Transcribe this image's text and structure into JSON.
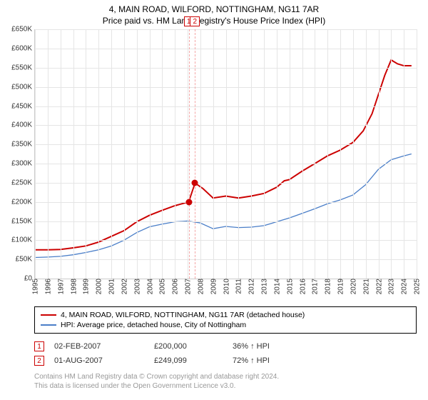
{
  "title_line1": "4, MAIN ROAD, WILFORD, NOTTINGHAM, NG11 7AR",
  "title_line2": "Price paid vs. HM Land Registry's House Price Index (HPI)",
  "y_axis": {
    "min": 0,
    "max": 650000,
    "step": 50000,
    "labels": [
      "£0",
      "£50K",
      "£100K",
      "£150K",
      "£200K",
      "£250K",
      "£300K",
      "£350K",
      "£400K",
      "£450K",
      "£500K",
      "£550K",
      "£600K",
      "£650K"
    ]
  },
  "x_axis": {
    "min": 1995,
    "max": 2025,
    "ticks": [
      1995,
      1996,
      1997,
      1998,
      1999,
      2000,
      2001,
      2002,
      2003,
      2004,
      2005,
      2006,
      2007,
      2008,
      2009,
      2010,
      2011,
      2012,
      2013,
      2014,
      2015,
      2016,
      2017,
      2018,
      2019,
      2020,
      2021,
      2022,
      2023,
      2024,
      2025
    ]
  },
  "series": {
    "red": {
      "color": "#cc0000",
      "width": 2,
      "legend": "4, MAIN ROAD, WILFORD, NOTTINGHAM, NG11 7AR (detached house)",
      "points": [
        [
          1995.0,
          75000
        ],
        [
          1996.0,
          75000
        ],
        [
          1997.0,
          76000
        ],
        [
          1998.0,
          80000
        ],
        [
          1999.0,
          85000
        ],
        [
          2000.0,
          95000
        ],
        [
          2001.0,
          110000
        ],
        [
          2002.0,
          125000
        ],
        [
          2003.0,
          148000
        ],
        [
          2004.0,
          165000
        ],
        [
          2005.0,
          178000
        ],
        [
          2006.0,
          190000
        ],
        [
          2007.09,
          200000
        ],
        [
          2007.58,
          249099
        ],
        [
          2008.2,
          235000
        ],
        [
          2009.0,
          210000
        ],
        [
          2010.0,
          215000
        ],
        [
          2011.0,
          210000
        ],
        [
          2012.0,
          215000
        ],
        [
          2013.0,
          222000
        ],
        [
          2014.0,
          238000
        ],
        [
          2014.6,
          255000
        ],
        [
          2015.0,
          258000
        ],
        [
          2016.0,
          280000
        ],
        [
          2017.0,
          300000
        ],
        [
          2018.0,
          320000
        ],
        [
          2019.0,
          335000
        ],
        [
          2020.0,
          355000
        ],
        [
          2020.8,
          385000
        ],
        [
          2021.5,
          430000
        ],
        [
          2022.0,
          480000
        ],
        [
          2022.5,
          530000
        ],
        [
          2023.0,
          570000
        ],
        [
          2023.5,
          560000
        ],
        [
          2024.0,
          555000
        ],
        [
          2024.6,
          555000
        ]
      ]
    },
    "blue": {
      "color": "#4a7ec8",
      "width": 1.3,
      "legend": "HPI: Average price, detached house, City of Nottingham",
      "points": [
        [
          1995.0,
          55000
        ],
        [
          1996.0,
          56000
        ],
        [
          1997.0,
          58000
        ],
        [
          1998.0,
          62000
        ],
        [
          1999.0,
          68000
        ],
        [
          2000.0,
          75000
        ],
        [
          2001.0,
          85000
        ],
        [
          2002.0,
          100000
        ],
        [
          2003.0,
          120000
        ],
        [
          2004.0,
          135000
        ],
        [
          2005.0,
          142000
        ],
        [
          2006.0,
          148000
        ],
        [
          2007.0,
          150000
        ],
        [
          2008.0,
          145000
        ],
        [
          2009.0,
          130000
        ],
        [
          2010.0,
          136000
        ],
        [
          2011.0,
          133000
        ],
        [
          2012.0,
          134000
        ],
        [
          2013.0,
          138000
        ],
        [
          2014.0,
          148000
        ],
        [
          2015.0,
          158000
        ],
        [
          2016.0,
          170000
        ],
        [
          2017.0,
          182000
        ],
        [
          2018.0,
          195000
        ],
        [
          2019.0,
          205000
        ],
        [
          2020.0,
          218000
        ],
        [
          2021.0,
          245000
        ],
        [
          2022.0,
          285000
        ],
        [
          2023.0,
          310000
        ],
        [
          2024.0,
          320000
        ],
        [
          2024.6,
          325000
        ]
      ]
    }
  },
  "sale_markers": [
    {
      "n": "1",
      "x": 2007.09,
      "y": 200000
    },
    {
      "n": "2",
      "x": 2007.58,
      "y": 249099
    }
  ],
  "events": [
    {
      "n": "1",
      "date": "02-FEB-2007",
      "price": "£200,000",
      "diff": "36% ↑ HPI"
    },
    {
      "n": "2",
      "date": "01-AUG-2007",
      "price": "£249,099",
      "diff": "72% ↑ HPI"
    }
  ],
  "marker_color": "#cc0000",
  "grid_color": "#e5e5e5",
  "footer_line1": "Contains HM Land Registry data © Crown copyright and database right 2024.",
  "footer_line2": "This data is licensed under the Open Government Licence v3.0."
}
